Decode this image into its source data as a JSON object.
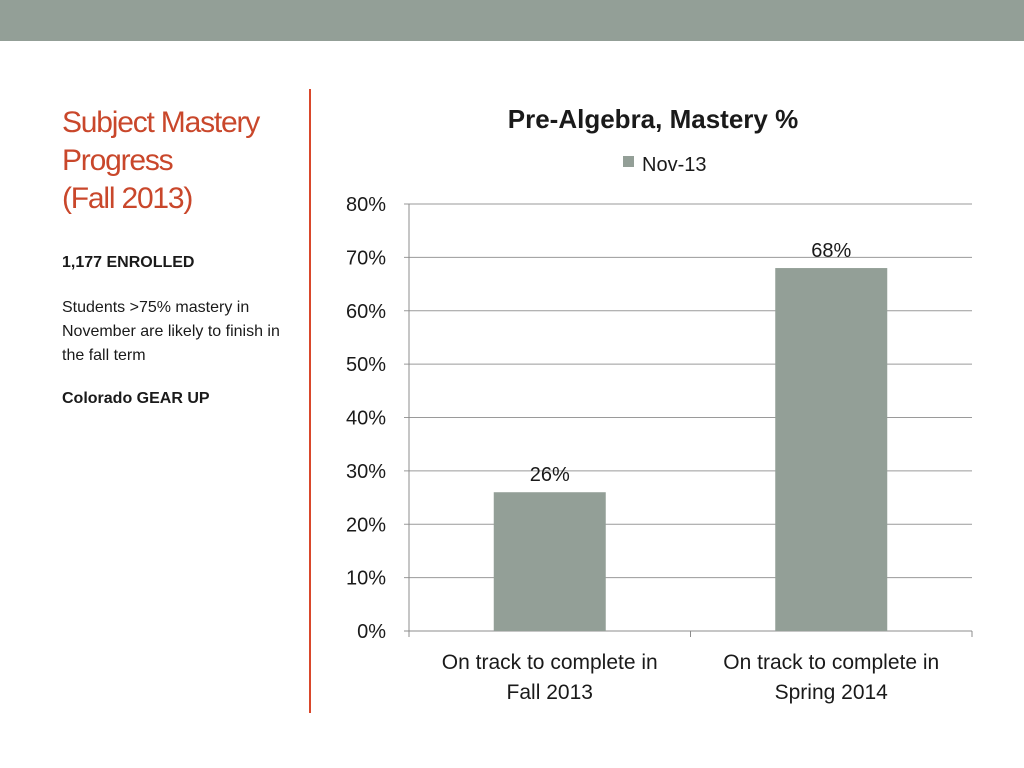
{
  "slide": {
    "title_lines": [
      "Subject Mastery",
      "Progress",
      "(Fall 2013)"
    ],
    "enrolled": "1,177 ENROLLED",
    "note": "Students >75% mastery in November are likely to finish in the fall term",
    "org": "Colorado GEAR UP"
  },
  "colors": {
    "top_band": "#939f97",
    "accent": "#c9472b",
    "bar": "#939f97"
  },
  "chart_data": {
    "type": "bar",
    "title": "Pre-Algebra, Mastery %",
    "legend": {
      "position": "top",
      "entries": [
        "Nov-13"
      ]
    },
    "categories": [
      [
        "On track to complete in",
        "Fall 2013"
      ],
      [
        "On track to complete in",
        "Spring 2014"
      ]
    ],
    "series": [
      {
        "name": "Nov-13",
        "values": [
          26,
          68
        ],
        "labels": [
          "26%",
          "68%"
        ]
      }
    ],
    "ylim": [
      0,
      80
    ],
    "yticks": [
      "0%",
      "10%",
      "20%",
      "30%",
      "40%",
      "50%",
      "60%",
      "70%",
      "80%"
    ],
    "ytick_values": [
      0,
      10,
      20,
      30,
      40,
      50,
      60,
      70,
      80
    ],
    "grid": true
  }
}
